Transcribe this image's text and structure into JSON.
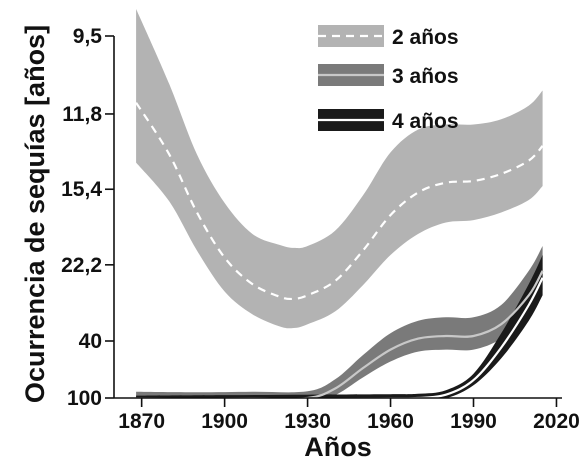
{
  "chart_data": {
    "type": "area",
    "xlabel": "Años",
    "ylabel": "Ocurrencia de sequías [años]",
    "xlim": [
      1860,
      2022
    ],
    "x_ticks": [
      1870,
      1900,
      1930,
      1960,
      1990,
      2020
    ],
    "y_scale": "reciprocal",
    "y_ticks": [
      9.5,
      11.8,
      15.4,
      22.2,
      40,
      100
    ],
    "y_tick_labels": [
      "9,5",
      "11,8",
      "15,4",
      "22,2",
      "40",
      "100"
    ],
    "legend_position": "top-right",
    "series": [
      {
        "name": "2 años",
        "color": "#b3b3b3",
        "line_color": "#ffffff",
        "line_style": "dashed",
        "x": [
          1868,
          1880,
          1890,
          1900,
          1910,
          1920,
          1925,
          1930,
          1940,
          1950,
          1960,
          1970,
          1980,
          1990,
          2000,
          2010,
          2015
        ],
        "center": [
          11.4,
          13.5,
          17.0,
          21.3,
          25.0,
          27.3,
          27.7,
          27.0,
          24.5,
          20.5,
          17.2,
          15.6,
          15.0,
          14.9,
          14.5,
          13.8,
          13.1
        ],
        "band": [
          2.5,
          2.7,
          3.5,
          5.0,
          6.2,
          7.4,
          7.5,
          7.0,
          6.0,
          4.7,
          3.8,
          3.2,
          2.8,
          2.7,
          2.5,
          2.3,
          2.1
        ]
      },
      {
        "name": "3 años",
        "color": "#7a7a7a",
        "line_color": "#c8c8c8",
        "line_style": "solid",
        "x": [
          1868,
          1890,
          1910,
          1930,
          1940,
          1950,
          1960,
          1970,
          1980,
          1990,
          2000,
          2010,
          2015
        ],
        "center": [
          101,
          102,
          101,
          100,
          80,
          56,
          44,
          39,
          38,
          38,
          34,
          27,
          23
        ],
        "band": [
          15,
          15,
          15,
          15,
          13,
          9,
          7,
          6,
          6,
          6,
          5,
          4,
          3
        ]
      },
      {
        "name": "4 años",
        "color": "#1a1a1a",
        "line_color": "#ffffff",
        "line_style": "solid",
        "x": [
          1868,
          1900,
          1930,
          1960,
          1970,
          1980,
          1990,
          2000,
          2010,
          2015
        ],
        "center": [
          104,
          103,
          102,
          101,
          100,
          92,
          68,
          43,
          29,
          24
        ],
        "band": [
          10,
          10,
          10,
          10,
          10,
          9,
          7,
          6,
          4,
          3
        ]
      }
    ]
  }
}
